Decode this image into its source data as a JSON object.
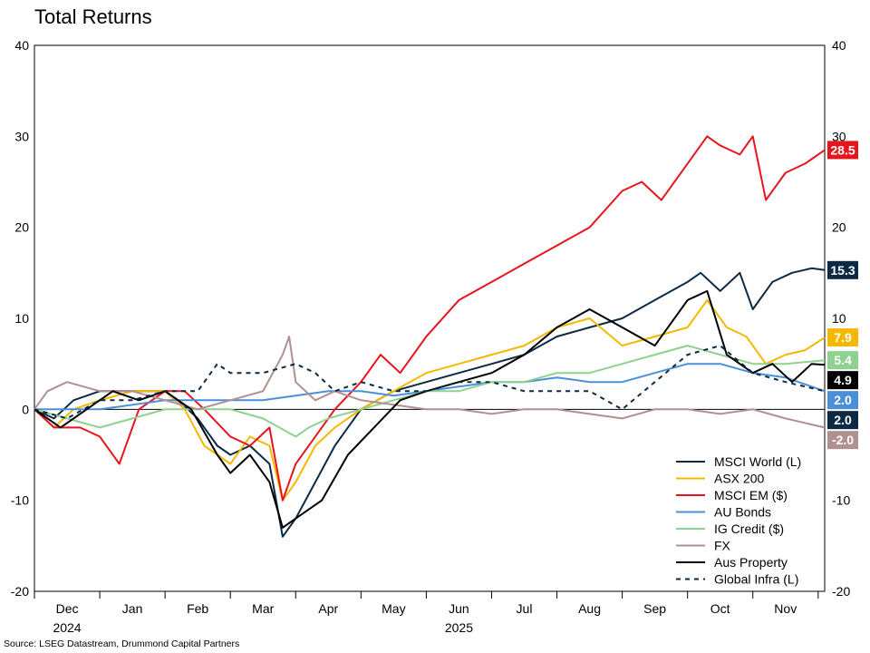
{
  "title": "Total Returns",
  "source": "Source: LSEG Datastream, Drummond Capital Partners",
  "chart_data": {
    "type": "line",
    "title": "Total Returns",
    "ylim": [
      -20,
      40
    ],
    "yticks_left": [
      "40",
      "30",
      "20",
      "10",
      "0",
      "-10",
      "-20"
    ],
    "yticks_right": [
      "40",
      "30",
      "20",
      "10",
      "-10",
      "-20"
    ],
    "ytick_values_left": [
      40,
      30,
      20,
      10,
      0,
      -10,
      -20
    ],
    "ytick_values_right": [
      40,
      30,
      20,
      10,
      -10,
      -20
    ],
    "x_months": [
      "Dec",
      "Jan",
      "Feb",
      "Mar",
      "Apr",
      "May",
      "Jun",
      "Jul",
      "Aug",
      "Sep",
      "Oct",
      "Nov"
    ],
    "x_years": [
      {
        "label": "2024",
        "month_index": 0
      },
      {
        "label": "2025",
        "month_index": 6
      }
    ],
    "xlim": [
      0,
      12.1
    ],
    "series": [
      {
        "name": "MSCI World (L)",
        "color": "#0d2a45",
        "dash": false,
        "end_label": "15.3",
        "x": [
          0,
          0.3,
          0.6,
          1,
          1.5,
          2,
          2.2,
          2.5,
          2.8,
          3,
          3.3,
          3.6,
          3.8,
          4,
          4.3,
          4.6,
          5,
          5.5,
          6,
          6.5,
          7,
          7.5,
          8,
          8.5,
          9,
          9.5,
          10,
          10.2,
          10.5,
          10.8,
          11,
          11.3,
          11.6,
          11.9,
          12.1
        ],
        "y": [
          0,
          -1,
          1,
          2,
          2,
          2,
          1,
          -1,
          -4,
          -5,
          -4,
          -6,
          -14,
          -12,
          -8,
          -4,
          0,
          2,
          3,
          4,
          5,
          6,
          8,
          9,
          10,
          12,
          14,
          15,
          13,
          15,
          11,
          14,
          15,
          15.5,
          15.3
        ]
      },
      {
        "name": "ASX 200",
        "color": "#f5b800",
        "dash": false,
        "end_label": "7.9",
        "x": [
          0,
          0.3,
          0.6,
          1,
          1.5,
          2,
          2.3,
          2.6,
          3,
          3.3,
          3.6,
          3.8,
          4,
          4.3,
          4.6,
          5,
          5.5,
          6,
          6.5,
          7,
          7.5,
          8,
          8.5,
          9,
          9.5,
          10,
          10.3,
          10.6,
          10.9,
          11.2,
          11.5,
          11.8,
          12.1
        ],
        "y": [
          0,
          -2,
          0,
          1,
          2,
          2,
          0,
          -4,
          -6,
          -3,
          -4,
          -10,
          -8,
          -4,
          -2,
          0,
          2,
          4,
          5,
          6,
          7,
          9,
          10,
          7,
          8,
          9,
          12,
          9,
          8,
          5,
          6,
          6.5,
          7.9
        ]
      },
      {
        "name": "MSCI EM ($)",
        "color": "#e8141b",
        "dash": false,
        "end_label": "28.5",
        "x": [
          0,
          0.3,
          0.7,
          1,
          1.3,
          1.6,
          2,
          2.3,
          2.6,
          3,
          3.3,
          3.6,
          3.8,
          4,
          4.3,
          4.6,
          5,
          5.3,
          5.6,
          6,
          6.5,
          7,
          7.5,
          8,
          8.5,
          9,
          9.3,
          9.6,
          10,
          10.3,
          10.5,
          10.8,
          11,
          11.2,
          11.5,
          11.8,
          12.1
        ],
        "y": [
          0,
          -2,
          -2,
          -3,
          -6,
          0,
          2,
          2,
          0,
          -3,
          -4,
          -2,
          -10,
          -6,
          -3,
          0,
          3,
          6,
          4,
          8,
          12,
          14,
          16,
          18,
          20,
          24,
          25,
          23,
          27,
          30,
          29,
          28,
          30,
          23,
          26,
          27,
          28.5
        ]
      },
      {
        "name": "AU Bonds",
        "color": "#4a90d9",
        "dash": false,
        "end_label": "2.0",
        "x": [
          0,
          1,
          2,
          3,
          3.5,
          4,
          4.5,
          5,
          5.5,
          6,
          6.5,
          7,
          7.5,
          8,
          8.5,
          9,
          9.5,
          10,
          10.5,
          11,
          11.5,
          12.1
        ],
        "y": [
          0,
          0,
          1,
          1,
          1,
          1.5,
          2,
          2,
          1.5,
          2,
          2.5,
          3,
          3,
          3.5,
          3,
          3,
          4,
          5,
          5,
          4,
          3.5,
          2.0
        ]
      },
      {
        "name": "IG Credit ($)",
        "color": "#8fd18f",
        "dash": false,
        "end_label": "5.4",
        "x": [
          0,
          0.5,
          1,
          1.5,
          2,
          2.5,
          3,
          3.5,
          4,
          4.2,
          4.5,
          5,
          5.5,
          6,
          6.5,
          7,
          7.5,
          8,
          8.5,
          9,
          9.5,
          10,
          10.5,
          11,
          11.5,
          12.1
        ],
        "y": [
          0,
          -1,
          -2,
          -1,
          0,
          0,
          0,
          -1,
          -3,
          -2,
          -1,
          0,
          1,
          2,
          2,
          3,
          3,
          4,
          4,
          5,
          6,
          7,
          6,
          5,
          5,
          5.4
        ]
      },
      {
        "name": "FX",
        "color": "#b09090",
        "dash": false,
        "end_label": "-2.0",
        "x": [
          0,
          0.2,
          0.5,
          1,
          1.5,
          2,
          2.5,
          3,
          3.5,
          3.8,
          3.9,
          4,
          4.3,
          4.6,
          5,
          5.5,
          6,
          6.5,
          7,
          7.5,
          8,
          8.5,
          9,
          9.5,
          10,
          10.5,
          11,
          11.5,
          12.1
        ],
        "y": [
          0,
          2,
          3,
          2,
          2,
          1,
          0,
          1,
          2,
          6,
          8,
          3,
          1,
          2,
          1,
          0.5,
          0,
          0,
          -0.5,
          0,
          0,
          -0.5,
          -1,
          0,
          0,
          -0.5,
          0,
          -1,
          -2.0
        ]
      },
      {
        "name": "Aus Property",
        "color": "#000000",
        "dash": false,
        "end_label": "4.9",
        "x": [
          0,
          0.4,
          0.8,
          1.2,
          1.6,
          2,
          2.4,
          2.8,
          3,
          3.3,
          3.6,
          3.8,
          4,
          4.4,
          4.8,
          5.2,
          5.6,
          6,
          6.5,
          7,
          7.5,
          8,
          8.5,
          9,
          9.5,
          10,
          10.3,
          10.6,
          11,
          11.3,
          11.6,
          11.9,
          12.1
        ],
        "y": [
          0,
          -2,
          0,
          2,
          1,
          2,
          0,
          -5,
          -7,
          -5,
          -8,
          -13,
          -12,
          -10,
          -5,
          -2,
          1,
          2,
          3,
          4,
          6,
          9,
          11,
          9,
          7,
          12,
          13,
          6,
          4,
          5,
          3,
          5,
          4.9
        ]
      },
      {
        "name": "Global Infra (L)",
        "color": "#0d2a45",
        "dash": true,
        "end_label": "2.0",
        "x": [
          0,
          0.5,
          1,
          1.5,
          2,
          2.5,
          2.8,
          3,
          3.5,
          4,
          4.3,
          4.6,
          5,
          5.5,
          6,
          6.5,
          7,
          7.5,
          8,
          8.5,
          9,
          9.5,
          10,
          10.5,
          11,
          11.5,
          12.1
        ],
        "y": [
          0,
          -1,
          1,
          1,
          2,
          2,
          5,
          4,
          4,
          5,
          4,
          2,
          3,
          2,
          2,
          3,
          3,
          2,
          2,
          2,
          0,
          3,
          6,
          7,
          4,
          3,
          2.0
        ]
      }
    ]
  }
}
